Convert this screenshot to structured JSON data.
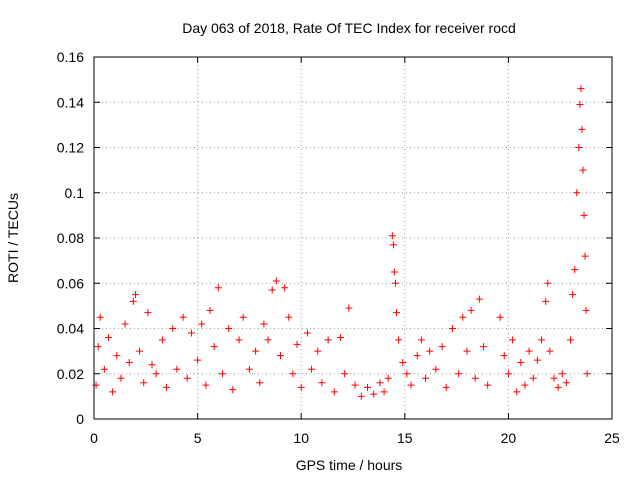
{
  "chart_data": {
    "type": "scatter",
    "title": "Day 063 of 2018, Rate Of TEC Index for receiver rocd",
    "xlabel": "GPS time / hours",
    "ylabel": "ROTI / TECUs",
    "xlim": [
      0,
      25
    ],
    "ylim": [
      0,
      0.16
    ],
    "x_ticks": [
      0,
      5,
      10,
      15,
      20,
      25
    ],
    "y_ticks": [
      0,
      0.02,
      0.04,
      0.06,
      0.08,
      0.1,
      0.12,
      0.14,
      0.16
    ],
    "x_tick_labels": [
      "0",
      "5",
      "10",
      "15",
      "20",
      "25"
    ],
    "y_tick_labels": [
      "0",
      "0.02",
      "0.04",
      "0.06",
      "0.08",
      "0.1",
      "0.12",
      "0.14",
      "0.16"
    ],
    "grid": true,
    "marker": "+",
    "marker_color": "#ff0000",
    "series": [
      {
        "name": "ROTI",
        "points": [
          [
            0.1,
            0.015
          ],
          [
            0.2,
            0.032
          ],
          [
            0.3,
            0.045
          ],
          [
            0.5,
            0.022
          ],
          [
            0.7,
            0.036
          ],
          [
            0.9,
            0.012
          ],
          [
            1.1,
            0.028
          ],
          [
            1.3,
            0.018
          ],
          [
            1.5,
            0.042
          ],
          [
            1.7,
            0.025
          ],
          [
            1.9,
            0.052
          ],
          [
            2.0,
            0.055
          ],
          [
            2.2,
            0.03
          ],
          [
            2.4,
            0.016
          ],
          [
            2.6,
            0.047
          ],
          [
            2.8,
            0.024
          ],
          [
            3.0,
            0.02
          ],
          [
            3.3,
            0.035
          ],
          [
            3.5,
            0.014
          ],
          [
            3.8,
            0.04
          ],
          [
            4.0,
            0.022
          ],
          [
            4.3,
            0.045
          ],
          [
            4.5,
            0.018
          ],
          [
            4.7,
            0.038
          ],
          [
            5.0,
            0.026
          ],
          [
            5.2,
            0.042
          ],
          [
            5.4,
            0.015
          ],
          [
            5.6,
            0.048
          ],
          [
            5.8,
            0.032
          ],
          [
            6.0,
            0.058
          ],
          [
            6.2,
            0.02
          ],
          [
            6.5,
            0.04
          ],
          [
            6.7,
            0.013
          ],
          [
            7.0,
            0.035
          ],
          [
            7.2,
            0.045
          ],
          [
            7.5,
            0.022
          ],
          [
            7.8,
            0.03
          ],
          [
            8.0,
            0.016
          ],
          [
            8.2,
            0.042
          ],
          [
            8.4,
            0.035
          ],
          [
            8.6,
            0.057
          ],
          [
            8.8,
            0.061
          ],
          [
            9.0,
            0.028
          ],
          [
            9.2,
            0.058
          ],
          [
            9.4,
            0.045
          ],
          [
            9.6,
            0.02
          ],
          [
            9.8,
            0.033
          ],
          [
            10.0,
            0.014
          ],
          [
            10.3,
            0.038
          ],
          [
            10.5,
            0.022
          ],
          [
            10.8,
            0.03
          ],
          [
            11.0,
            0.016
          ],
          [
            11.3,
            0.035
          ],
          [
            11.6,
            0.012
          ],
          [
            11.9,
            0.036
          ],
          [
            12.1,
            0.02
          ],
          [
            12.3,
            0.049
          ],
          [
            12.6,
            0.015
          ],
          [
            12.9,
            0.01
          ],
          [
            13.2,
            0.014
          ],
          [
            13.5,
            0.011
          ],
          [
            13.8,
            0.016
          ],
          [
            14.0,
            0.012
          ],
          [
            14.2,
            0.018
          ],
          [
            14.4,
            0.081
          ],
          [
            14.45,
            0.077
          ],
          [
            14.5,
            0.065
          ],
          [
            14.55,
            0.06
          ],
          [
            14.6,
            0.047
          ],
          [
            14.7,
            0.035
          ],
          [
            14.9,
            0.025
          ],
          [
            15.1,
            0.02
          ],
          [
            15.3,
            0.015
          ],
          [
            15.6,
            0.028
          ],
          [
            15.8,
            0.035
          ],
          [
            16.0,
            0.018
          ],
          [
            16.2,
            0.03
          ],
          [
            16.5,
            0.022
          ],
          [
            16.8,
            0.032
          ],
          [
            17.0,
            0.014
          ],
          [
            17.3,
            0.04
          ],
          [
            17.6,
            0.02
          ],
          [
            17.8,
            0.045
          ],
          [
            18.0,
            0.03
          ],
          [
            18.2,
            0.048
          ],
          [
            18.4,
            0.018
          ],
          [
            18.6,
            0.053
          ],
          [
            18.8,
            0.032
          ],
          [
            19.0,
            0.015
          ],
          [
            19.6,
            0.045
          ],
          [
            19.8,
            0.028
          ],
          [
            20.0,
            0.02
          ],
          [
            20.2,
            0.035
          ],
          [
            20.4,
            0.012
          ],
          [
            20.6,
            0.025
          ],
          [
            20.8,
            0.015
          ],
          [
            21.0,
            0.03
          ],
          [
            21.2,
            0.018
          ],
          [
            21.4,
            0.026
          ],
          [
            21.6,
            0.035
          ],
          [
            21.8,
            0.052
          ],
          [
            21.9,
            0.06
          ],
          [
            22.0,
            0.03
          ],
          [
            22.2,
            0.018
          ],
          [
            22.4,
            0.014
          ],
          [
            22.6,
            0.02
          ],
          [
            22.8,
            0.016
          ],
          [
            23.0,
            0.035
          ],
          [
            23.1,
            0.055
          ],
          [
            23.2,
            0.066
          ],
          [
            23.3,
            0.1
          ],
          [
            23.4,
            0.12
          ],
          [
            23.45,
            0.139
          ],
          [
            23.5,
            0.146
          ],
          [
            23.55,
            0.128
          ],
          [
            23.6,
            0.11
          ],
          [
            23.65,
            0.09
          ],
          [
            23.7,
            0.072
          ],
          [
            23.75,
            0.048
          ],
          [
            23.8,
            0.02
          ]
        ]
      }
    ]
  }
}
